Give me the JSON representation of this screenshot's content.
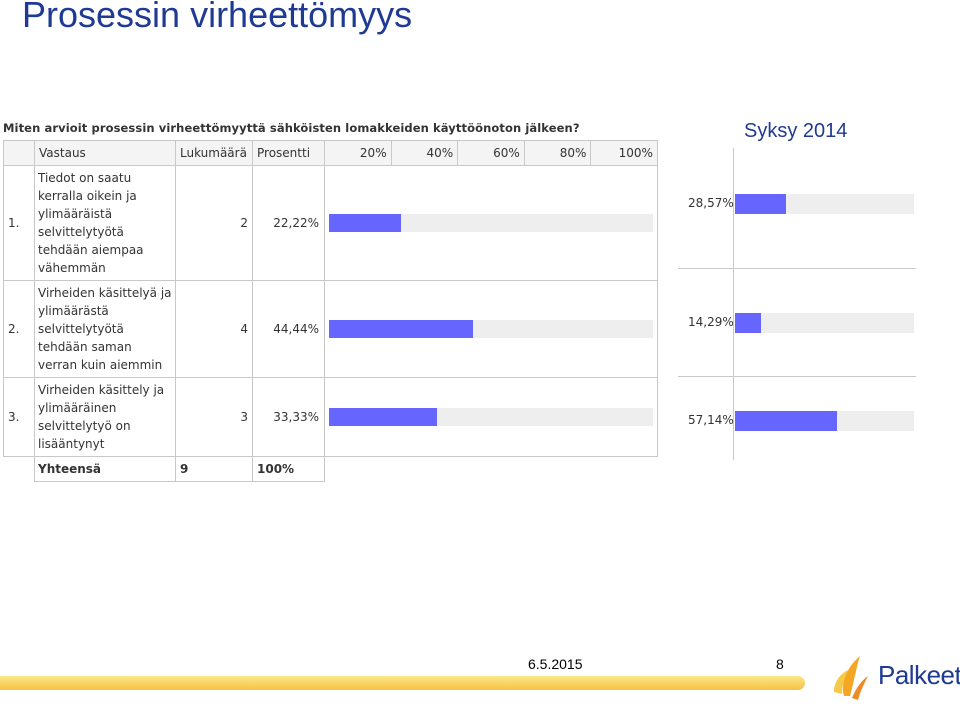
{
  "slide": {
    "title": "Prosessin virheettömyys",
    "date": "6.5.2015",
    "page_number": "8",
    "logo_text": "Palkeet"
  },
  "colors": {
    "title": "#1f3a93",
    "bar": "#6666ff",
    "track": "#eeeeee",
    "footer": "#f5c242"
  },
  "survey": {
    "question": "Miten arvioit prosessin virheettömyyttä sähköisten lomakkeiden käyttöönoton jälkeen?",
    "headers": {
      "answer": "Vastaus",
      "count": "Lukumäärä",
      "percent": "Prosentti",
      "scale": [
        "20%",
        "40%",
        "60%",
        "80%",
        "100%"
      ]
    },
    "rows": [
      {
        "num": "1.",
        "answer": "Tiedot on saatu kerralla oikein ja ylimääräistä selvittelytyötä tehdään aiempaa vähemmän",
        "count": "2",
        "percent": "22,22%"
      },
      {
        "num": "2.",
        "answer": "Virheiden käsittelyä ja ylimäärästä selvittelytyötä tehdään saman verran kuin aiemmin",
        "count": "4",
        "percent": "44,44%"
      },
      {
        "num": "3.",
        "answer": "Virheiden käsittely ja ylimääräinen selvittelytyö on lisääntynyt",
        "count": "3",
        "percent": "33,33%"
      }
    ],
    "total": {
      "label": "Yhteensä",
      "count": "9",
      "percent": "100%"
    }
  },
  "comparison": {
    "label": "Syksy 2014",
    "rows": [
      {
        "percent": "28,57%"
      },
      {
        "percent": "14,29%"
      },
      {
        "percent": "57,14%"
      }
    ]
  },
  "chart_data": [
    {
      "type": "bar",
      "categories": [
        "1.",
        "2.",
        "3."
      ],
      "values": [
        22.22,
        44.44,
        33.33
      ],
      "counts": [
        2,
        4,
        3
      ],
      "title": "Miten arvioit prosessin virheettömyyttä sähköisten lomakkeiden käyttöönoton jälkeen?",
      "xlim": [
        0,
        100
      ],
      "orientation": "horizontal"
    },
    {
      "type": "bar",
      "categories": [
        "1.",
        "2.",
        "3."
      ],
      "values": [
        28.57,
        14.29,
        57.14
      ],
      "title": "Syksy 2014",
      "xlim": [
        0,
        100
      ],
      "orientation": "horizontal"
    }
  ]
}
